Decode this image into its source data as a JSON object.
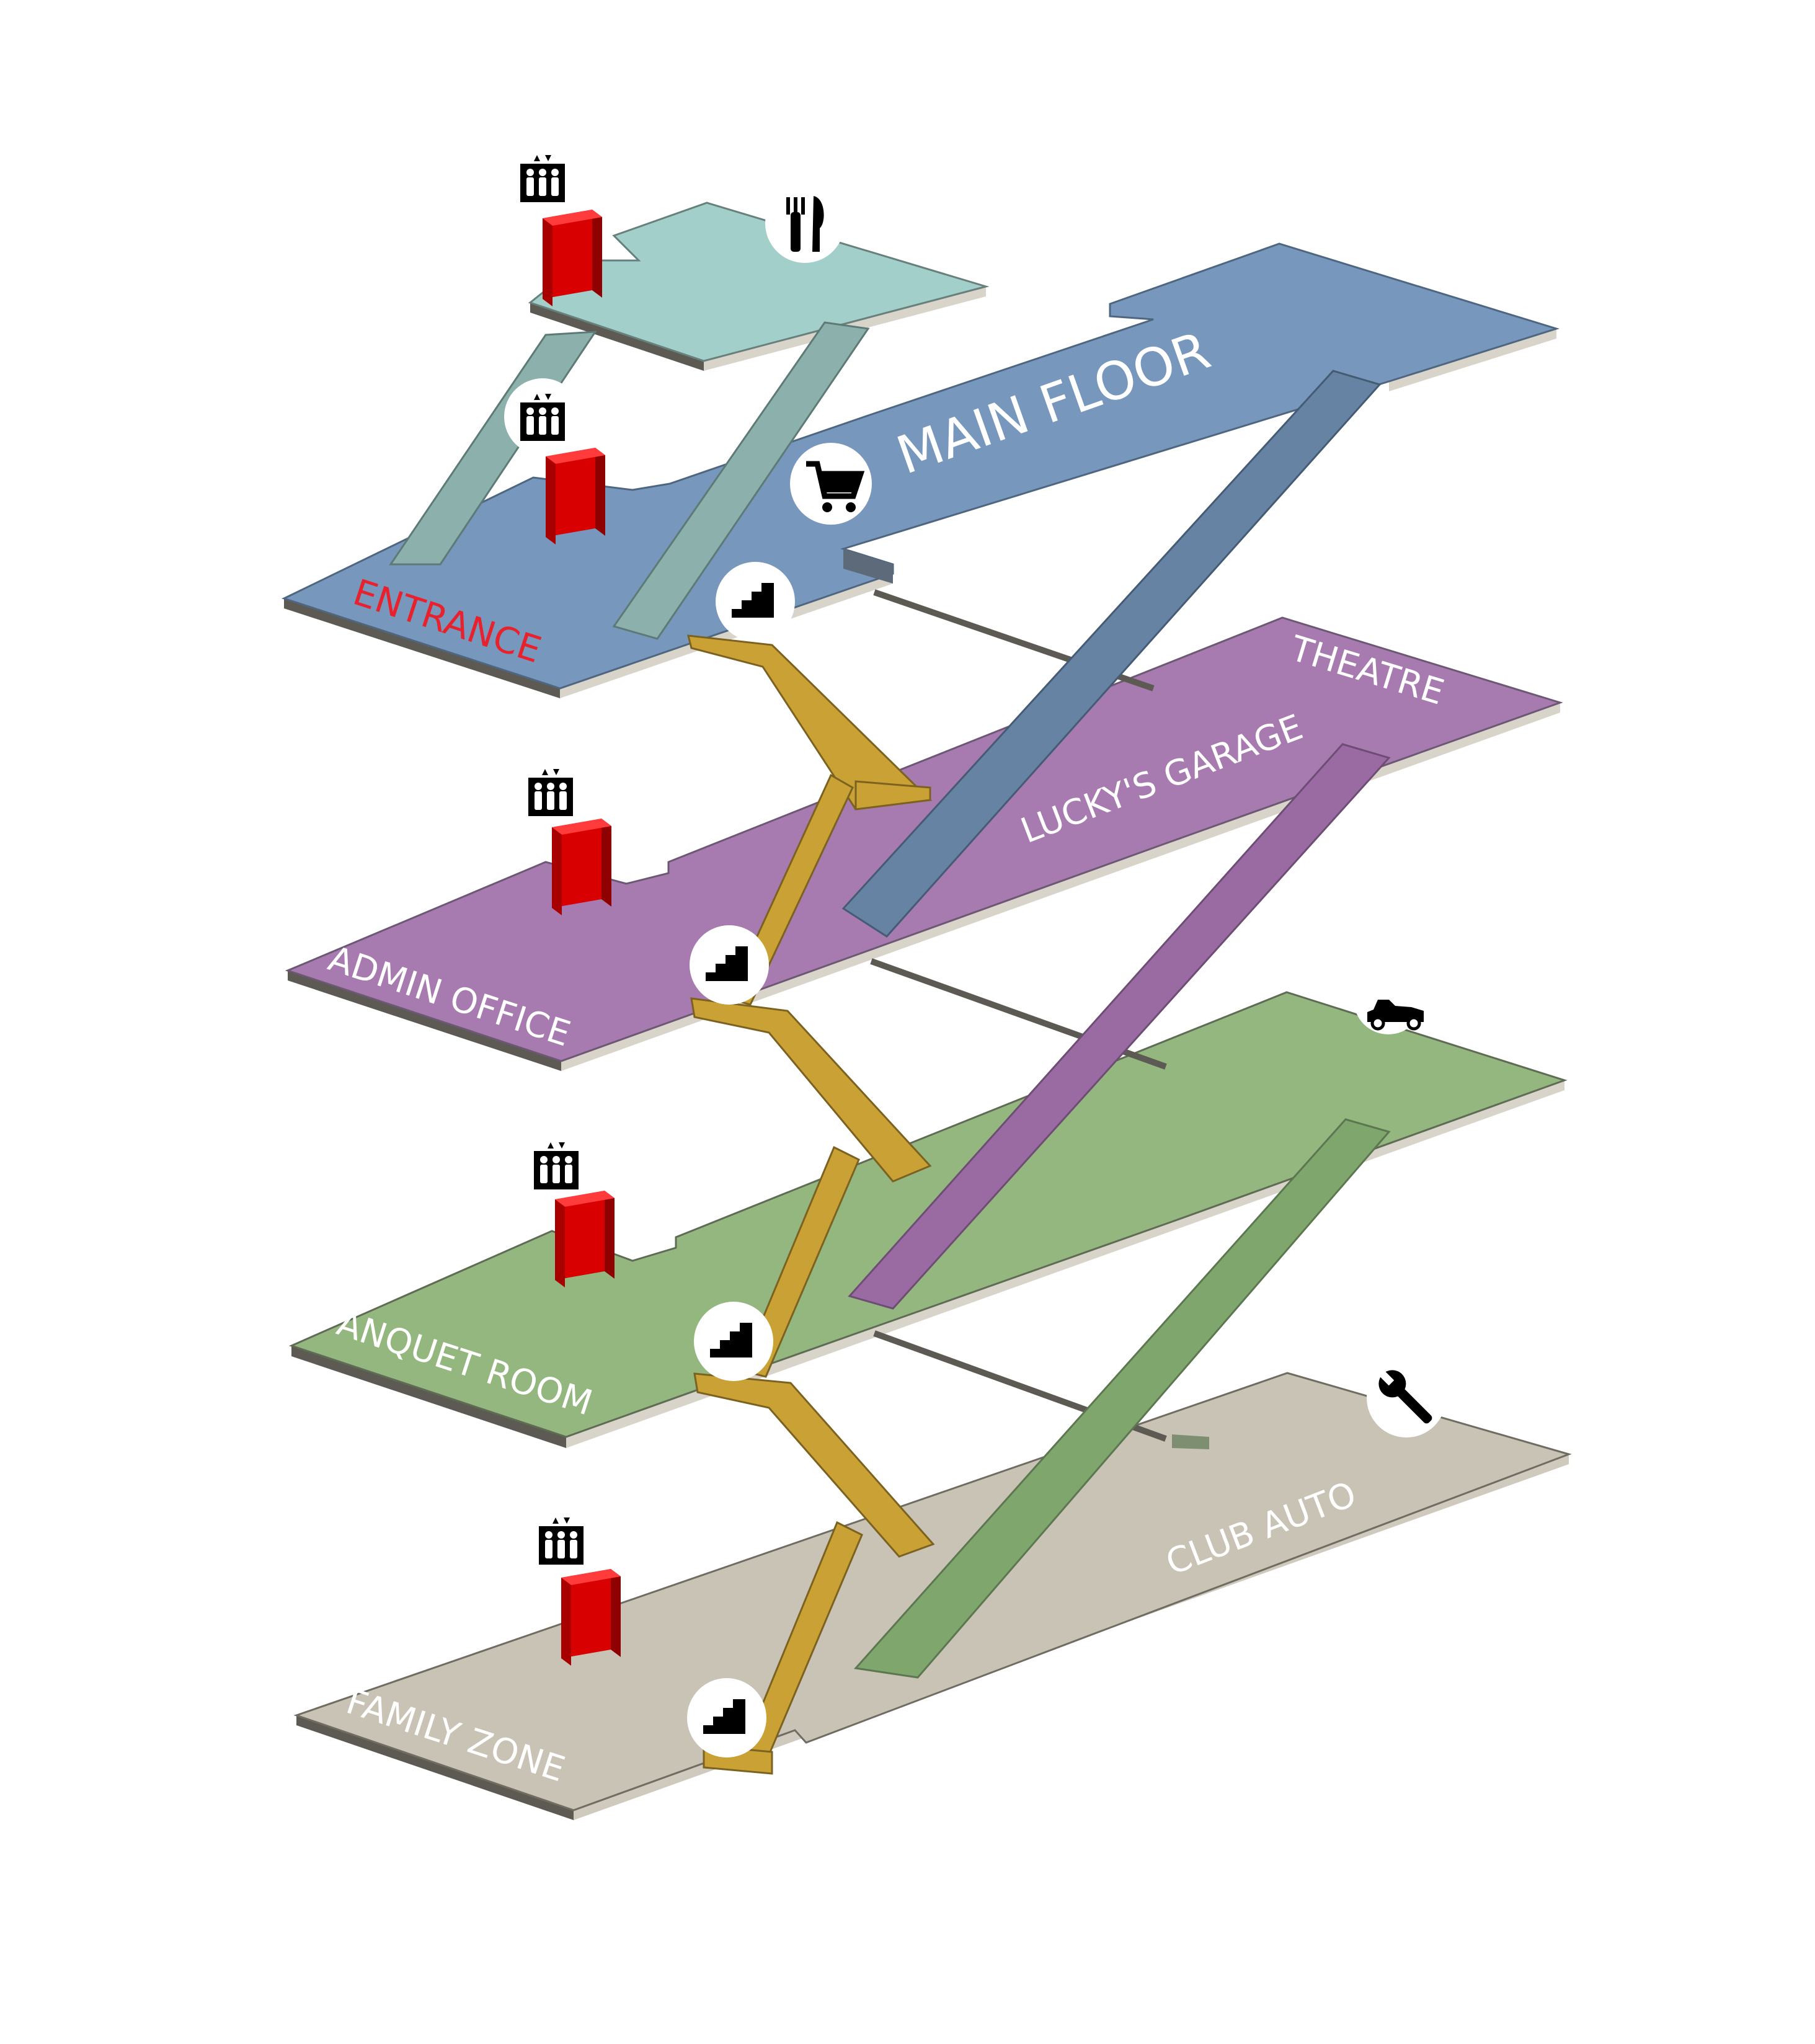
{
  "map": {
    "labels": {
      "main_floor": "MAIN FLOOR",
      "entrance": "ENTRANCE",
      "theatre": "THEATRE",
      "luckys_garage": "LUCKY'S GARAGE",
      "admin_office": "ADMIN OFFICE",
      "banquet_room": "ANQUET ROOM",
      "club_auto": "CLUB AUTO",
      "family_zone": "FAMILY ZONE"
    },
    "colors": {
      "top_floor": "#a3cfca",
      "main_floor": "#7797bc",
      "purple_floor": "#a77bb0",
      "green_floor": "#93b77f",
      "bottom_floor": "#c8c3b4",
      "floor_edge": "#d9d4c9",
      "elevator": "#d80000",
      "stairs": "#c9a134",
      "entrance_text": "#e8222c"
    },
    "icons": [
      "elevator-icon",
      "restaurant-icon",
      "shopping-cart-icon",
      "stairs-icon",
      "race-car-icon",
      "wrench-icon"
    ]
  }
}
